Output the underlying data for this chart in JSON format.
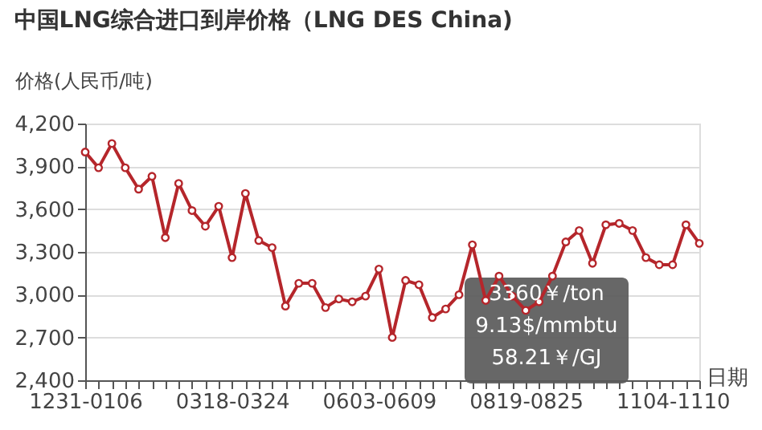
{
  "chart_data": {
    "type": "line",
    "title": "中国LNG综合进口到岸价格（LNG DES China)",
    "xlabel": "日期",
    "ylabel": "价格(人民币/吨)",
    "categories": [
      "1231-0106",
      null,
      null,
      null,
      null,
      null,
      null,
      null,
      null,
      null,
      null,
      "0318-0324",
      null,
      null,
      null,
      null,
      null,
      null,
      null,
      null,
      null,
      null,
      "0603-0609",
      null,
      null,
      null,
      null,
      null,
      null,
      null,
      null,
      null,
      null,
      "0819-0825",
      null,
      null,
      null,
      null,
      null,
      null,
      null,
      null,
      null,
      null,
      "1104-1110",
      null,
      null
    ],
    "series": [
      {
        "color": "#b5262b",
        "values": [
          4000,
          3890,
          4060,
          3890,
          3740,
          3830,
          3400,
          3780,
          3590,
          3480,
          3620,
          3260,
          3710,
          3380,
          3330,
          2920,
          3080,
          3080,
          2910,
          2970,
          2950,
          2990,
          3180,
          2700,
          3100,
          3070,
          2840,
          2900,
          3000,
          3350,
          2960,
          3130,
          2990,
          2890,
          2950,
          3130,
          3370,
          3450,
          3220,
          3490,
          3500,
          3450,
          3260,
          3210,
          3210,
          3490,
          3360
        ]
      }
    ],
    "ylim": [
      2400,
      4200
    ],
    "yticks": [
      {
        "value": 2400,
        "label": "2,400"
      },
      {
        "value": 2700,
        "label": "2,700"
      },
      {
        "value": 3000,
        "label": "3,000"
      },
      {
        "value": 3300,
        "label": "3,300"
      },
      {
        "value": 3600,
        "label": "3,600"
      },
      {
        "value": 3900,
        "label": "3,900"
      },
      {
        "value": 4200,
        "label": "4,200"
      }
    ],
    "grid": "y",
    "marker": "circle",
    "line_style": "solid",
    "annotations": [
      "3360￥/ton\n9.13$/mmbtu\n58.21￥/GJ"
    ]
  }
}
